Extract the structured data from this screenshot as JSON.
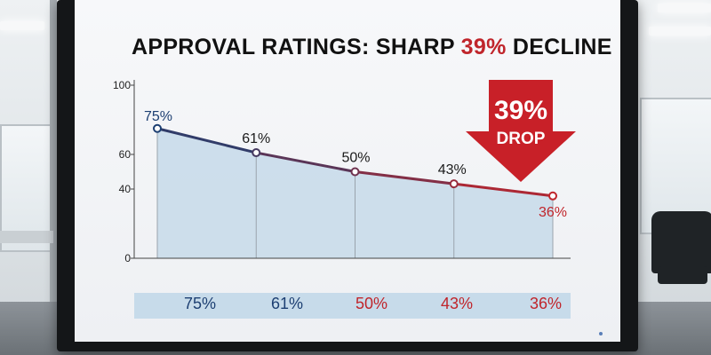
{
  "chart_data": {
    "type": "area",
    "title_prefix": "APPROVAL RATINGS: SHARP ",
    "title_accent": "39%",
    "title_suffix": " DECLINE",
    "values": [
      75,
      61,
      50,
      43,
      36
    ],
    "point_labels": [
      "75%",
      "61%",
      "50%",
      "43%",
      "36%"
    ],
    "bottom_labels": [
      "75%",
      "61%",
      "50%",
      "43%",
      "36%"
    ],
    "yticks": [
      0,
      40,
      60,
      100
    ],
    "ylim": [
      0,
      100
    ],
    "grid": true,
    "annotation": {
      "line1": "39%",
      "line2": "DROP"
    },
    "colors": {
      "start": "#1d3f72",
      "end": "#c0252b",
      "fill": "#c9dcea",
      "panel": "#c7dbea",
      "arrow": "#c82028",
      "grid": "#9aa4ad"
    }
  }
}
